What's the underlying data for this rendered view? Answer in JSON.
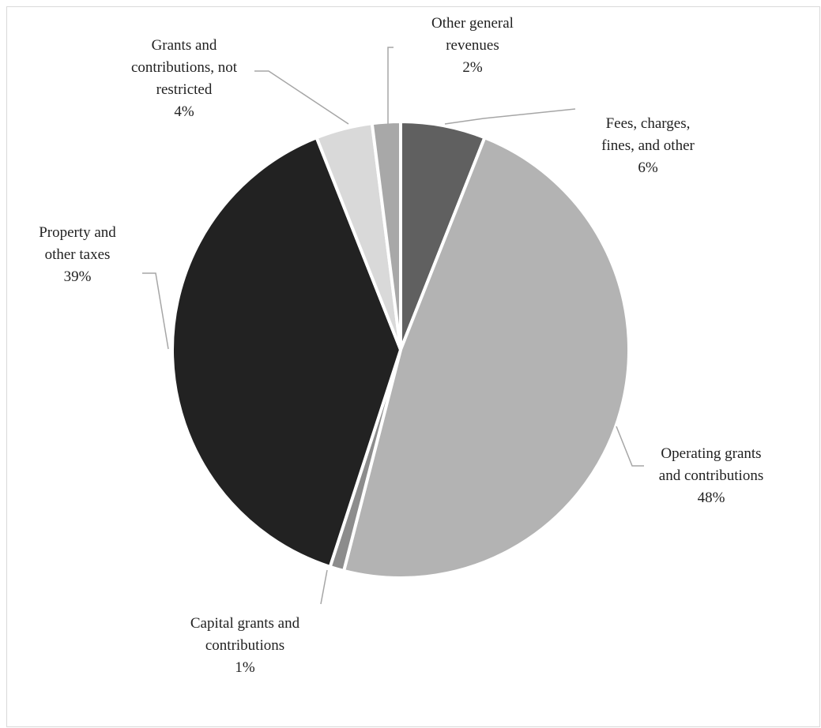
{
  "chart_data": {
    "type": "pie",
    "slices": [
      {
        "name_lines": [
          "Fees, charges,",
          "fines, and other"
        ],
        "value": 6,
        "value_label": "6%",
        "color": "#606060"
      },
      {
        "name_lines": [
          "Operating grants",
          "and contributions"
        ],
        "value": 48,
        "value_label": "48%",
        "color": "#b3b3b3"
      },
      {
        "name_lines": [
          "Capital grants and",
          "contributions"
        ],
        "value": 1,
        "value_label": "1%",
        "color": "#8c8c8c"
      },
      {
        "name_lines": [
          "Property and",
          "other taxes"
        ],
        "value": 39,
        "value_label": "39%",
        "color": "#222222"
      },
      {
        "name_lines": [
          "Grants and",
          "contributions, not",
          "restricted"
        ],
        "value": 4,
        "value_label": "4%",
        "color": "#d9d9d9"
      },
      {
        "name_lines": [
          "Other general",
          "revenues"
        ],
        "value": 2,
        "value_label": "2%",
        "color": "#a8a8a8"
      }
    ],
    "start": "12 o'clock",
    "direction": "clockwise",
    "legend": "none",
    "data_labels": "outside with leader lines"
  }
}
